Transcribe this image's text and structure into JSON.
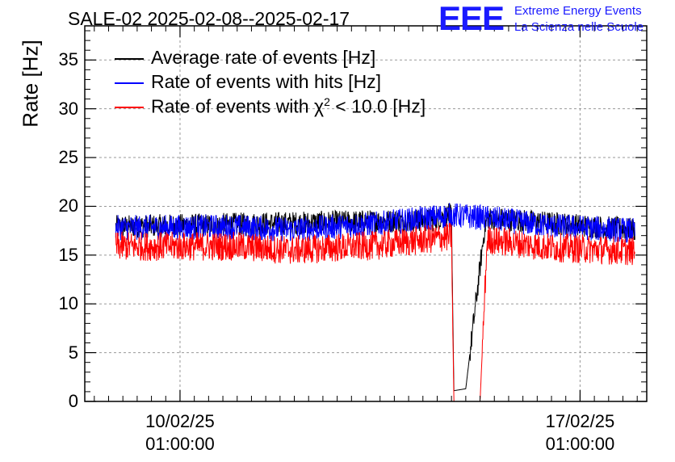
{
  "header": {
    "title": "SALE-02 2025-02-08--2025-02-17"
  },
  "logo": {
    "mark": "EEE",
    "line1": "Extreme Energy Events",
    "line2": "La Scienza nelle Scuole"
  },
  "colors": {
    "average": "#000000",
    "hits": "#0000ff",
    "chi2": "#ff0000",
    "logo": "#1a1aff",
    "grid": "#999999"
  },
  "chart_data": {
    "type": "line",
    "title": "SALE-02 2025-02-08--2025-02-17",
    "ylabel": "Rate [Hz]",
    "xlabel": "",
    "ylim": [
      0,
      38.5
    ],
    "xlim": [
      "2025-02-08 09:00",
      "2025-02-18 05:00"
    ],
    "grid": true,
    "legend_position": "top-left",
    "y_ticks": [
      "0",
      "5",
      "10",
      "15",
      "20",
      "25",
      "30",
      "35"
    ],
    "x_ticks": [
      {
        "date": "10/02/25",
        "time": "01:00:00",
        "at": "2025-02-10 01:00"
      },
      {
        "date": "17/02/25",
        "time": "01:00:00",
        "at": "2025-02-17 01:00"
      }
    ],
    "series": [
      {
        "name": "Average rate of events [Hz]",
        "color": "#000000",
        "x": [
          "2025-02-08 22:00",
          "2025-02-14 12:00",
          "2025-02-14 19:00",
          "2025-02-14 20:00",
          "2025-02-15 01:00",
          "2025-02-15 09:00",
          "2025-02-15 10:00",
          "2025-02-18 00:00"
        ],
        "values": [
          17.9,
          18.6,
          19.2,
          1.1,
          1.3,
          17.9,
          18.8,
          17.6
        ]
      },
      {
        "name": "Rate of events with hits [Hz]",
        "color": "#0000ff",
        "x": [
          "2025-02-08 22:00",
          "2025-02-11 00:00",
          "2025-02-12 00:00",
          "2025-02-13 12:00",
          "2025-02-14 19:00",
          "2025-02-15 10:00",
          "2025-02-16 12:00",
          "2025-02-18 00:00"
        ],
        "values": [
          17.8,
          17.9,
          17.6,
          18.2,
          19.1,
          18.8,
          18.0,
          17.5
        ]
      },
      {
        "name": "Rate of events with χ² < 10.0 [Hz]",
        "name_prefix": "Rate of events with ",
        "name_chi": "χ",
        "name_sup": "2",
        "name_suffix": " < 10.0 [Hz]",
        "color": "#ff0000",
        "x": [
          "2025-02-08 22:00",
          "2025-02-11 00:00",
          "2025-02-12 00:00",
          "2025-02-13 12:00",
          "2025-02-14 19:00",
          "2025-02-14 20:00",
          "2025-02-15 07:00",
          "2025-02-15 10:00",
          "2025-02-16 12:00",
          "2025-02-18 00:00"
        ],
        "values": [
          15.9,
          15.9,
          15.5,
          16.0,
          16.9,
          0.0,
          0.0,
          16.6,
          15.8,
          15.4
        ]
      }
    ]
  }
}
